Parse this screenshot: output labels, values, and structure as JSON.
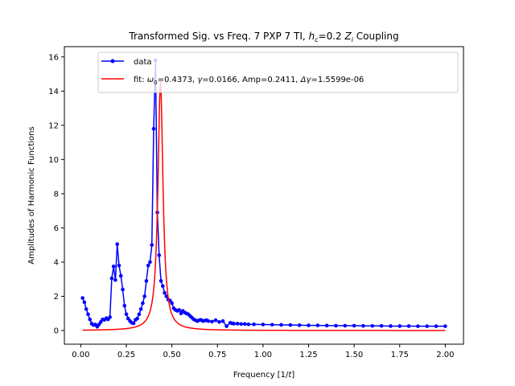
{
  "chart_data": {
    "type": "line",
    "title_main": "Transformed Sig. vs Freq. 7 PXP 7 TI, ",
    "title_h": "h",
    "title_c": "c",
    "title_mid": "=0.2 ",
    "title_z": "Z",
    "title_i": "i",
    "title_end": " Coupling",
    "xlabel": "Frequency [1/",
    "xlabel_t": "t",
    "xlabel_end": "]",
    "ylabel": "Amplitudes of Harmonic Functions",
    "xlim": [
      -0.09,
      2.1
    ],
    "ylim": [
      -0.8,
      16.6
    ],
    "xticks": [
      0.0,
      0.25,
      0.5,
      0.75,
      1.0,
      1.25,
      1.5,
      1.75,
      2.0
    ],
    "xtick_labels": [
      "0.00",
      "0.25",
      "0.50",
      "0.75",
      "1.00",
      "1.25",
      "1.50",
      "1.75",
      "2.00"
    ],
    "yticks": [
      0,
      2,
      4,
      6,
      8,
      10,
      12,
      14,
      16
    ],
    "ytick_labels": [
      "0",
      "2",
      "4",
      "6",
      "8",
      "10",
      "12",
      "14",
      "16"
    ],
    "legend_position": "upper-right",
    "legend": {
      "data_label": "data",
      "fit_prefix": "fit: ",
      "fit_omega": "ω",
      "fit_omega_sub": "0",
      "fit_omega_val": "=0.4373, ",
      "fit_gamma": "γ",
      "fit_gamma_val": "=0.0166, Amp=0.2411, ",
      "fit_delta": "Δγ",
      "fit_delta_val": "=1.5599e-06"
    },
    "series": [
      {
        "name": "data",
        "color": "#0000ff",
        "marker": "circle",
        "x": [
          0.01,
          0.02,
          0.03,
          0.04,
          0.05,
          0.06,
          0.07,
          0.08,
          0.09,
          0.1,
          0.11,
          0.12,
          0.13,
          0.14,
          0.15,
          0.16,
          0.17,
          0.18,
          0.19,
          0.2,
          0.21,
          0.22,
          0.23,
          0.24,
          0.25,
          0.26,
          0.27,
          0.28,
          0.29,
          0.3,
          0.31,
          0.32,
          0.33,
          0.34,
          0.35,
          0.36,
          0.37,
          0.38,
          0.39,
          0.4,
          0.41,
          0.42,
          0.43,
          0.44,
          0.45,
          0.46,
          0.47,
          0.48,
          0.49,
          0.5,
          0.51,
          0.52,
          0.53,
          0.54,
          0.55,
          0.56,
          0.57,
          0.58,
          0.59,
          0.6,
          0.61,
          0.62,
          0.63,
          0.64,
          0.65,
          0.66,
          0.67,
          0.68,
          0.69,
          0.7,
          0.72,
          0.74,
          0.76,
          0.78,
          0.8,
          0.82,
          0.83,
          0.84,
          0.86,
          0.88,
          0.9,
          0.92,
          0.95,
          1.0,
          1.05,
          1.1,
          1.15,
          1.2,
          1.25,
          1.3,
          1.35,
          1.4,
          1.45,
          1.5,
          1.55,
          1.6,
          1.65,
          1.7,
          1.75,
          1.8,
          1.85,
          1.9,
          1.95,
          2.0
        ],
        "values": [
          1.9,
          1.65,
          1.25,
          0.95,
          0.65,
          0.4,
          0.32,
          0.35,
          0.22,
          0.35,
          0.5,
          0.65,
          0.62,
          0.72,
          0.65,
          0.78,
          3.05,
          3.75,
          2.95,
          5.05,
          3.8,
          3.2,
          2.4,
          1.45,
          0.95,
          0.7,
          0.55,
          0.45,
          0.42,
          0.62,
          0.7,
          0.95,
          1.25,
          1.6,
          2.0,
          2.9,
          3.8,
          4.0,
          5.0,
          11.8,
          15.8,
          6.9,
          4.4,
          2.9,
          2.6,
          2.2,
          2.0,
          1.8,
          1.75,
          1.6,
          1.3,
          1.2,
          1.15,
          1.2,
          1.0,
          1.15,
          1.05,
          1.0,
          0.95,
          0.85,
          0.75,
          0.65,
          0.6,
          0.55,
          0.6,
          0.62,
          0.55,
          0.58,
          0.6,
          0.55,
          0.52,
          0.6,
          0.5,
          0.55,
          0.25,
          0.45,
          0.42,
          0.4,
          0.4,
          0.38,
          0.38,
          0.36,
          0.36,
          0.35,
          0.34,
          0.33,
          0.32,
          0.31,
          0.3,
          0.3,
          0.29,
          0.28,
          0.28,
          0.28,
          0.27,
          0.27,
          0.27,
          0.26,
          0.26,
          0.26,
          0.25,
          0.25,
          0.25,
          0.25
        ]
      },
      {
        "name": "fit",
        "color": "#ff0000",
        "model": "lorentzian",
        "omega0": 0.4373,
        "gamma": 0.0166,
        "amp": 0.2411
      }
    ]
  }
}
